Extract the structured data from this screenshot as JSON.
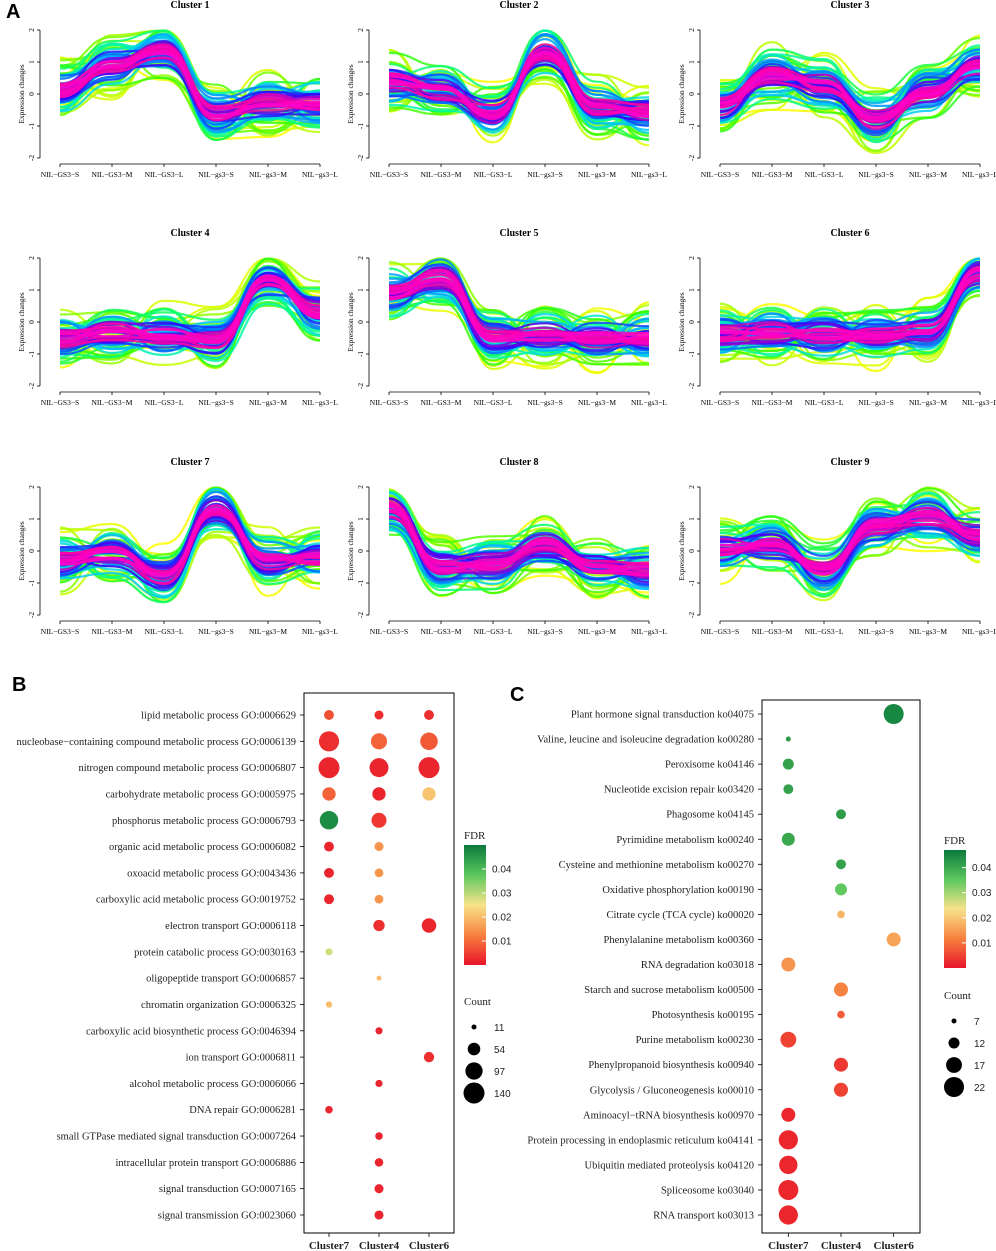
{
  "panel_letters": {
    "A": "A",
    "B": "B",
    "C": "C"
  },
  "colors": {
    "profile_gradient": [
      "#ff00cc",
      "#ff00a0",
      "#3300ff",
      "#0066ff",
      "#00c8ff",
      "#00ff99",
      "#33ff00",
      "#aaff00",
      "#ffff00"
    ],
    "fdr_gradient": [
      "#e8142a",
      "#f7813e",
      "#f7e38a",
      "#5cc85e",
      "#0a7a3c"
    ]
  },
  "chart_data": [
    {
      "type": "line",
      "panel": "A",
      "description_title": "Expression profile clusters",
      "ylabel": "Expression changes",
      "ylim": [
        -2,
        2
      ],
      "yticks": [
        "-2",
        "-1",
        "0",
        "1",
        "2"
      ],
      "clusters": [
        {
          "title": "Cluster 1",
          "categories": [
            "NIL−GS3−S",
            "NIL−GS3−M",
            "NIL−GS3−L",
            "NIL−gs3−S",
            "NIL−gs3−M",
            "NIL−gs3−L"
          ],
          "center": [
            0.1,
            0.9,
            1.3,
            -0.6,
            -0.3,
            -0.3
          ]
        },
        {
          "title": "Cluster 2",
          "categories": [
            "NIL−GS3−S",
            "NIL−GS3−M",
            "NIL−GS3−L",
            "NIL−gs3−S",
            "NIL−gs3−M",
            "NIL−gs3−L"
          ],
          "center": [
            0.4,
            0.1,
            -0.6,
            1.3,
            -0.4,
            -0.6
          ]
        },
        {
          "title": "Cluster 3",
          "categories": [
            "NIL−GS3−S",
            "NIL−GS3−M",
            "NIL−GS3−L",
            "NIL−gs3−S",
            "NIL−gs3−M",
            "NIL−gs3−L"
          ],
          "center": [
            -0.4,
            0.6,
            0.3,
            -0.8,
            0.1,
            0.9
          ]
        },
        {
          "title": "Cluster 4",
          "categories": [
            "NIL−GS3−S",
            "NIL−GS3−M",
            "NIL−GS3−L",
            "NIL−gs3−S",
            "NIL−gs3−M",
            "NIL−gs3−L"
          ],
          "center": [
            -0.5,
            -0.3,
            -0.4,
            -0.6,
            1.3,
            0.3
          ]
        },
        {
          "title": "Cluster 5",
          "categories": [
            "NIL−GS3−S",
            "NIL−GS3−M",
            "NIL−GS3−L",
            "NIL−gs3−S",
            "NIL−gs3−M",
            "NIL−gs3−L"
          ],
          "center": [
            0.9,
            1.4,
            -0.5,
            -0.4,
            -0.5,
            -0.5
          ]
        },
        {
          "title": "Cluster 6",
          "categories": [
            "NIL−GS3−S",
            "NIL−GS3−M",
            "NIL−GS3−L",
            "NIL−gs3−S",
            "NIL−gs3−M",
            "NIL−gs3−L"
          ],
          "center": [
            -0.4,
            -0.3,
            -0.4,
            -0.4,
            -0.3,
            1.5
          ]
        },
        {
          "title": "Cluster 7",
          "categories": [
            "NIL−GS3−S",
            "NIL−GS3−M",
            "NIL−GS3−L",
            "NIL−gs3−S",
            "NIL−gs3−M",
            "NIL−gs3−L"
          ],
          "center": [
            -0.3,
            -0.1,
            -0.8,
            1.3,
            -0.3,
            -0.2
          ]
        },
        {
          "title": "Cluster 8",
          "categories": [
            "NIL−GS3−S",
            "NIL−GS3−M",
            "NIL−GS3−L",
            "NIL−gs3−S",
            "NIL−gs3−M",
            "NIL−gs3−L"
          ],
          "center": [
            1.3,
            -0.5,
            -0.4,
            0.2,
            -0.5,
            -0.6
          ]
        },
        {
          "title": "Cluster 9",
          "categories": [
            "NIL−GS3−S",
            "NIL−GS3−M",
            "NIL−GS3−L",
            "NIL−gs3−S",
            "NIL−gs3−M",
            "NIL−gs3−L"
          ],
          "center": [
            0.1,
            0.2,
            -0.6,
            0.8,
            1.1,
            0.5
          ]
        }
      ]
    },
    {
      "type": "scatter",
      "panel": "B",
      "columns": [
        "Cluster7",
        "Cluster4",
        "Cluster6"
      ],
      "terms": [
        {
          "label": "lipid metabolic process GO:0006629",
          "points": [
            {
              "col": 0,
              "count": 35,
              "fdr": 0.007
            },
            {
              "col": 1,
              "count": 30,
              "fdr": 0.003
            },
            {
              "col": 2,
              "count": 35,
              "fdr": 0.003
            }
          ]
        },
        {
          "label": "nucleobase−containing compound metabolic process GO:0006139",
          "points": [
            {
              "col": 0,
              "count": 130,
              "fdr": 0.003
            },
            {
              "col": 1,
              "count": 85,
              "fdr": 0.009
            },
            {
              "col": 2,
              "count": 100,
              "fdr": 0.008
            }
          ]
        },
        {
          "label": "nitrogen compound metabolic process GO:0006807",
          "points": [
            {
              "col": 0,
              "count": 140,
              "fdr": 0.002
            },
            {
              "col": 1,
              "count": 115,
              "fdr": 0.002
            },
            {
              "col": 2,
              "count": 140,
              "fdr": 0.002
            }
          ]
        },
        {
          "label": "carbohydrate metabolic process GO:0005975",
          "points": [
            {
              "col": 0,
              "count": 60,
              "fdr": 0.009
            },
            {
              "col": 1,
              "count": 60,
              "fdr": 0.002
            },
            {
              "col": 2,
              "count": 60,
              "fdr": 0.021
            }
          ]
        },
        {
          "label": "phosphorus metabolic process GO:0006793",
          "points": [
            {
              "col": 0,
              "count": 110,
              "fdr": 0.047
            },
            {
              "col": 1,
              "count": 75,
              "fdr": 0.004
            }
          ]
        },
        {
          "label": "organic acid metabolic process GO:0006082",
          "points": [
            {
              "col": 0,
              "count": 35,
              "fdr": 0.002
            },
            {
              "col": 1,
              "count": 30,
              "fdr": 0.015
            }
          ]
        },
        {
          "label": "oxoacid metabolic process GO:0043436",
          "points": [
            {
              "col": 0,
              "count": 35,
              "fdr": 0.002
            },
            {
              "col": 1,
              "count": 28,
              "fdr": 0.015
            }
          ]
        },
        {
          "label": "carboxylic acid metabolic process GO:0019752",
          "points": [
            {
              "col": 0,
              "count": 35,
              "fdr": 0.002
            },
            {
              "col": 1,
              "count": 28,
              "fdr": 0.015
            }
          ]
        },
        {
          "label": "electron transport GO:0006118",
          "points": [
            {
              "col": 1,
              "count": 45,
              "fdr": 0.003
            },
            {
              "col": 2,
              "count": 70,
              "fdr": 0.002
            }
          ]
        },
        {
          "label": "protein catabolic process GO:0030163",
          "points": [
            {
              "col": 0,
              "count": 20,
              "fdr": 0.028
            }
          ]
        },
        {
          "label": "oligopeptide transport GO:0006857",
          "points": [
            {
              "col": 1,
              "count": 11,
              "fdr": 0.02
            }
          ]
        },
        {
          "label": "chromatin organization GO:0006325",
          "points": [
            {
              "col": 0,
              "count": 16,
              "fdr": 0.02
            }
          ]
        },
        {
          "label": "carboxylic acid biosynthetic process GO:0046394",
          "points": [
            {
              "col": 1,
              "count": 20,
              "fdr": 0.002
            }
          ]
        },
        {
          "label": "ion transport GO:0006811",
          "points": [
            {
              "col": 2,
              "count": 38,
              "fdr": 0.003
            }
          ]
        },
        {
          "label": "alcohol metabolic process GO:0006066",
          "points": [
            {
              "col": 1,
              "count": 20,
              "fdr": 0.002
            }
          ]
        },
        {
          "label": "DNA repair GO:0006281",
          "points": [
            {
              "col": 0,
              "count": 22,
              "fdr": 0.002
            }
          ]
        },
        {
          "label": "small GTPase mediated signal transduction GO:0007264",
          "points": [
            {
              "col": 1,
              "count": 22,
              "fdr": 0.002
            }
          ]
        },
        {
          "label": "intracellular protein transport GO:0006886",
          "points": [
            {
              "col": 1,
              "count": 27,
              "fdr": 0.002
            }
          ]
        },
        {
          "label": "signal transduction GO:0007165",
          "points": [
            {
              "col": 1,
              "count": 30,
              "fdr": 0.002
            }
          ]
        },
        {
          "label": "signal transmission GO:0023060",
          "points": [
            {
              "col": 1,
              "count": 30,
              "fdr": 0.002
            }
          ]
        }
      ],
      "legend": {
        "fdr_title": "FDR",
        "fdr_ticks": [
          "0.04",
          "0.03",
          "0.02",
          "0.01"
        ],
        "fdr_range": [
          0.0,
          0.05
        ],
        "count_title": "Count",
        "count_values": [
          11,
          54,
          97,
          140
        ]
      }
    },
    {
      "type": "scatter",
      "panel": "C",
      "columns": [
        "Cluster7",
        "Cluster4",
        "Cluster6"
      ],
      "terms": [
        {
          "label": "Plant hormone signal transduction ko04075",
          "points": [
            {
              "col": 2,
              "count": 22,
              "fdr": 0.045
            }
          ]
        },
        {
          "label": "Valine, leucine and isoleucine degradation ko00280",
          "points": [
            {
              "col": 0,
              "count": 7,
              "fdr": 0.042
            }
          ]
        },
        {
          "label": "Peroxisome ko04146",
          "points": [
            {
              "col": 0,
              "count": 12,
              "fdr": 0.041
            }
          ]
        },
        {
          "label": "Nucleotide excision repair ko03420",
          "points": [
            {
              "col": 0,
              "count": 11,
              "fdr": 0.041
            }
          ]
        },
        {
          "label": "Phagosome ko04145",
          "points": [
            {
              "col": 1,
              "count": 11,
              "fdr": 0.042
            }
          ]
        },
        {
          "label": "Pyrimidine metabolism ko00240",
          "points": [
            {
              "col": 0,
              "count": 14,
              "fdr": 0.04
            }
          ]
        },
        {
          "label": "Cysteine and methionine metabolism ko00270",
          "points": [
            {
              "col": 1,
              "count": 11,
              "fdr": 0.041
            }
          ]
        },
        {
          "label": "Oxidative phosphorylation ko00190",
          "points": [
            {
              "col": 1,
              "count": 13,
              "fdr": 0.035
            }
          ]
        },
        {
          "label": "Citrate cycle (TCA cycle) ko00020",
          "points": [
            {
              "col": 1,
              "count": 9,
              "fdr": 0.018
            }
          ]
        },
        {
          "label": "Phenylalanine metabolism ko00360",
          "points": [
            {
              "col": 2,
              "count": 15,
              "fdr": 0.016
            }
          ]
        },
        {
          "label": "RNA degradation ko03018",
          "points": [
            {
              "col": 0,
              "count": 15,
              "fdr": 0.014
            }
          ]
        },
        {
          "label": "Starch and sucrose metabolism ko00500",
          "points": [
            {
              "col": 1,
              "count": 15,
              "fdr": 0.012
            }
          ]
        },
        {
          "label": "Photosynthesis ko00195",
          "points": [
            {
              "col": 1,
              "count": 9,
              "fdr": 0.008
            }
          ]
        },
        {
          "label": "Purine metabolism ko00230",
          "points": [
            {
              "col": 0,
              "count": 17,
              "fdr": 0.005
            }
          ]
        },
        {
          "label": "Phenylpropanoid biosynthesis ko00940",
          "points": [
            {
              "col": 1,
              "count": 15,
              "fdr": 0.004
            }
          ]
        },
        {
          "label": "Glycolysis / Gluconeogenesis ko00010",
          "points": [
            {
              "col": 1,
              "count": 15,
              "fdr": 0.005
            }
          ]
        },
        {
          "label": "Aminoacyl−tRNA biosynthesis ko00970",
          "points": [
            {
              "col": 0,
              "count": 15,
              "fdr": 0.002
            }
          ]
        },
        {
          "label": "Protein processing in endoplasmic reticulum ko04141",
          "points": [
            {
              "col": 0,
              "count": 21,
              "fdr": 0.002
            }
          ]
        },
        {
          "label": "Ubiquitin mediated proteolysis ko04120",
          "points": [
            {
              "col": 0,
              "count": 20,
              "fdr": 0.002
            }
          ]
        },
        {
          "label": "Spliceosome ko03040",
          "points": [
            {
              "col": 0,
              "count": 22,
              "fdr": 0.002
            }
          ]
        },
        {
          "label": "RNA transport ko03013",
          "points": [
            {
              "col": 0,
              "count": 21,
              "fdr": 0.002
            }
          ]
        }
      ],
      "legend": {
        "fdr_title": "FDR",
        "fdr_ticks": [
          "0.04",
          "0.03",
          "0.02",
          "0.01"
        ],
        "fdr_range": [
          0.0,
          0.047
        ],
        "count_title": "Count",
        "count_values": [
          7,
          12,
          17,
          22
        ]
      }
    }
  ]
}
